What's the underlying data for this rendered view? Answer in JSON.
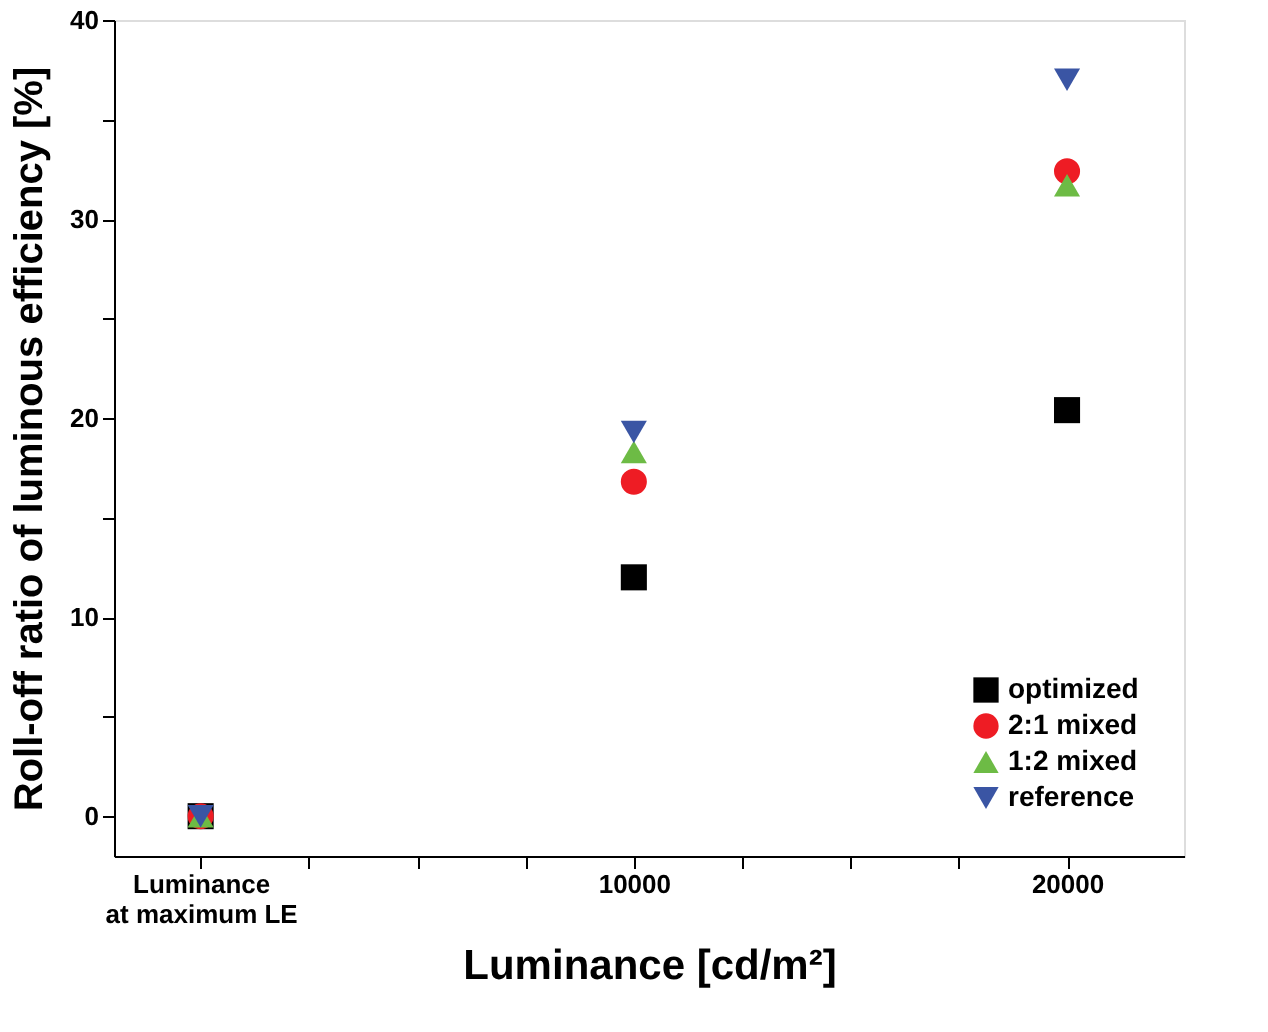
{
  "chart_data": {
    "type": "scatter",
    "xlabel": "Luminance [cd/m²]",
    "ylabel": "Roll-off ratio of luminous efficiency [%]",
    "x": [
      0,
      10000,
      20000
    ],
    "series": [
      {
        "name": "optimized",
        "color": "#000000",
        "marker": "square",
        "values": [
          0,
          12.0,
          20.4
        ]
      },
      {
        "name": "2:1 mixed",
        "color": "#ee1c24",
        "marker": "circle",
        "values": [
          0,
          16.8,
          32.4
        ]
      },
      {
        "name": "1:2 mixed",
        "color": "#6dbb45",
        "marker": "triangle",
        "values": [
          0,
          18.3,
          31.7
        ]
      },
      {
        "name": "reference",
        "color": "#3a55a4",
        "marker": "triangle-down",
        "values": [
          0,
          19.3,
          37.0
        ]
      }
    ],
    "xlim": [
      -2000,
      22700
    ],
    "xticks": [
      {
        "value": 0,
        "label": "Luminance\nat maximum LE"
      },
      {
        "value": 2500,
        "label": null
      },
      {
        "value": 5000,
        "label": null
      },
      {
        "value": 7500,
        "label": null
      },
      10000,
      {
        "value": 12500,
        "label": null
      },
      {
        "value": 15000,
        "label": null
      },
      {
        "value": 17500,
        "label": null
      },
      20000
    ],
    "ylim": [
      -2,
      40
    ],
    "yticks": [
      0,
      {
        "value": 5,
        "label": null
      },
      10,
      {
        "value": 15,
        "label": null
      },
      20,
      {
        "value": 25,
        "label": null
      },
      30,
      {
        "value": 35,
        "label": null
      },
      40
    ],
    "grid": false,
    "legend": "bottom right"
  }
}
